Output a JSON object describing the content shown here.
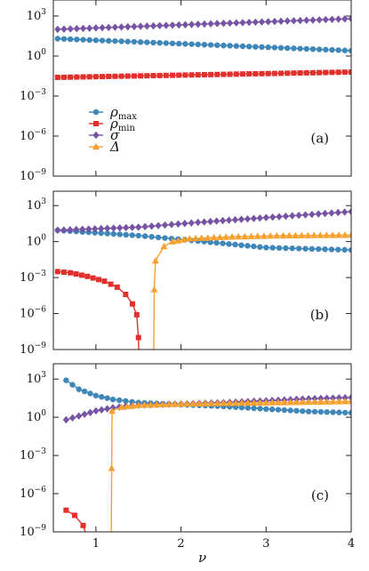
{
  "chart_data": [
    {
      "type": "line",
      "panel_label": "(a)",
      "xlim": [
        0.5,
        4
      ],
      "ylim_log10": [
        -9,
        4.2
      ],
      "yscale": "log",
      "yticks_log10": [
        3,
        0,
        -3,
        -6,
        -9
      ],
      "xticks": [
        1,
        2,
        3,
        4
      ],
      "show_x_tick_labels": false,
      "legend": {
        "placement": "middle-left",
        "entries": [
          {
            "series": "rho_max",
            "label": "ρ",
            "sub": "max"
          },
          {
            "series": "rho_min",
            "label": "ρ",
            "sub": "min"
          },
          {
            "series": "sigma",
            "label": "σ",
            "sub": ""
          },
          {
            "series": "delta",
            "label": "Δ",
            "sub": ""
          }
        ]
      },
      "series": [
        {
          "id": "rho_max",
          "marker": "circle",
          "color": "#3f86b9",
          "points": [
            [
              0.55,
              1.3
            ],
            [
              4.0,
              0.4
            ]
          ]
        },
        {
          "id": "rho_min",
          "marker": "square",
          "color": "#e0302c",
          "points": [
            [
              0.55,
              -1.6
            ],
            [
              4.0,
              -1.2
            ]
          ]
        },
        {
          "id": "sigma",
          "marker": "diamond",
          "color": "#7654a3",
          "points": [
            [
              0.55,
              2.0
            ],
            [
              4.0,
              2.8
            ]
          ]
        }
      ]
    },
    {
      "type": "line",
      "panel_label": "(b)",
      "xlim": [
        0.5,
        4
      ],
      "ylim_log10": [
        -9,
        4.2
      ],
      "yscale": "log",
      "yticks_log10": [
        3,
        0,
        -3,
        -6,
        -9
      ],
      "xticks": [
        1,
        2,
        3,
        4
      ],
      "show_x_tick_labels": false,
      "series": [
        {
          "id": "rho_max",
          "marker": "circle",
          "color": "#3f86b9",
          "points": [
            [
              0.55,
              0.95
            ],
            [
              1.5,
              0.5
            ],
            [
              2.2,
              0.05
            ],
            [
              3,
              -0.5
            ],
            [
              4.0,
              -0.7
            ]
          ]
        },
        {
          "id": "rho_min",
          "marker": "square",
          "color": "#e0302c",
          "points": [
            [
              0.55,
              -2.5
            ],
            [
              0.7,
              -2.6
            ],
            [
              0.9,
              -2.9
            ],
            [
              1.1,
              -3.3
            ],
            [
              1.25,
              -3.8
            ],
            [
              1.35,
              -4.4
            ],
            [
              1.43,
              -5.2
            ],
            [
              1.48,
              -6.1
            ],
            [
              1.5,
              -8
            ],
            [
              1.505,
              -9.5
            ]
          ]
        },
        {
          "id": "sigma",
          "marker": "diamond",
          "color": "#7654a3",
          "points": [
            [
              0.55,
              0.95
            ],
            [
              1.5,
              1.2
            ],
            [
              2.2,
              1.6
            ],
            [
              3.0,
              2.0
            ],
            [
              4.0,
              2.5
            ]
          ]
        },
        {
          "id": "delta",
          "marker": "triangle",
          "color": "#f5a02f",
          "points": [
            [
              1.68,
              -9.5
            ],
            [
              1.685,
              -4
            ],
            [
              1.7,
              -1.6
            ],
            [
              1.8,
              -0.4
            ],
            [
              1.9,
              0.0
            ],
            [
              2.1,
              0.25
            ],
            [
              2.6,
              0.4
            ],
            [
              3.2,
              0.5
            ],
            [
              4.0,
              0.55
            ]
          ]
        }
      ]
    },
    {
      "type": "line",
      "panel_label": "(c)",
      "xlim": [
        0.5,
        4
      ],
      "ylim_log10": [
        -9,
        4.2
      ],
      "yscale": "log",
      "yticks_log10": [
        3,
        0,
        -3,
        -6,
        -9
      ],
      "xticks": [
        1,
        2,
        3,
        4
      ],
      "show_x_tick_labels": true,
      "xlabel": "ν",
      "series": [
        {
          "id": "rho_max",
          "marker": "circle",
          "color": "#3f86b9",
          "points": [
            [
              0.65,
              2.9
            ],
            [
              0.8,
              2.2
            ],
            [
              1.0,
              1.7
            ],
            [
              1.2,
              1.4
            ],
            [
              1.5,
              1.15
            ],
            [
              2.0,
              1.0
            ],
            [
              2.5,
              0.85
            ],
            [
              3.0,
              0.65
            ],
            [
              3.5,
              0.45
            ],
            [
              4.0,
              0.35
            ]
          ]
        },
        {
          "id": "rho_min",
          "marker": "square",
          "color": "#e0302c",
          "points": [
            [
              0.65,
              -7.3
            ],
            [
              0.75,
              -7.7
            ],
            [
              0.85,
              -8.5
            ],
            [
              0.9,
              -9.5
            ]
          ]
        },
        {
          "id": "sigma",
          "marker": "diamond",
          "color": "#7654a3",
          "points": [
            [
              0.65,
              -0.2
            ],
            [
              0.8,
              0.1
            ],
            [
              1.0,
              0.5
            ],
            [
              1.2,
              0.75
            ],
            [
              1.5,
              0.95
            ],
            [
              2.0,
              1.05
            ],
            [
              2.5,
              1.15
            ],
            [
              3.0,
              1.3
            ],
            [
              3.5,
              1.45
            ],
            [
              4.0,
              1.55
            ]
          ]
        },
        {
          "id": "delta",
          "marker": "triangle",
          "color": "#f5a02f",
          "points": [
            [
              1.18,
              -9.5
            ],
            [
              1.185,
              -4
            ],
            [
              1.19,
              0.5
            ],
            [
              1.3,
              0.8
            ],
            [
              1.5,
              0.95
            ],
            [
              2.0,
              1.05
            ],
            [
              2.5,
              1.1
            ],
            [
              3.0,
              1.15
            ],
            [
              3.5,
              1.2
            ],
            [
              4.0,
              1.25
            ]
          ]
        }
      ]
    }
  ],
  "axes": {
    "y_tick_base": "10",
    "y_tick_exponents": [
      "3",
      "0",
      "−3",
      "−6",
      "−9"
    ],
    "x_tick_labels": [
      "1",
      "2",
      "3",
      "4"
    ],
    "xlabel": "ν"
  }
}
